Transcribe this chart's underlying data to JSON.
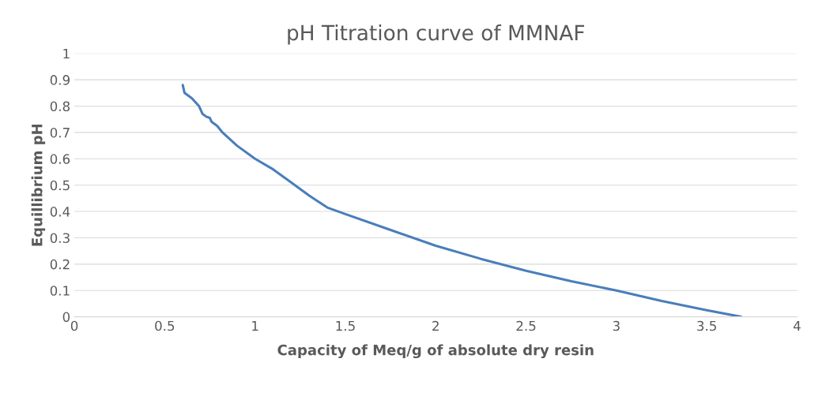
{
  "chart_data": {
    "type": "line",
    "title": "pH Titration curve of MMNAF",
    "xlabel": "Capacity of Meq/g of absolute dry resin",
    "ylabel": "Equillibrium pH",
    "x": [
      0.6,
      0.61,
      0.65,
      0.69,
      0.71,
      0.73,
      0.75,
      0.76,
      0.79,
      0.82,
      0.9,
      1.0,
      1.1,
      1.2,
      1.3,
      1.4,
      1.5,
      1.75,
      2.0,
      2.25,
      2.5,
      2.75,
      3.0,
      3.25,
      3.5,
      3.69
    ],
    "series": [
      {
        "color": "#4a7ebb",
        "values": [
          0.88,
          0.85,
          0.83,
          0.8,
          0.77,
          0.76,
          0.755,
          0.74,
          0.725,
          0.7,
          0.65,
          0.6,
          0.56,
          0.51,
          0.46,
          0.415,
          0.39,
          0.33,
          0.27,
          0.22,
          0.175,
          0.135,
          0.1,
          0.06,
          0.025,
          0.0
        ]
      }
    ],
    "xlim": [
      0,
      4
    ],
    "xticks": [
      0,
      0.5,
      1,
      1.5,
      2,
      2.5,
      3,
      3.5,
      4
    ],
    "ylim": [
      0,
      1
    ],
    "yticks": [
      0,
      0.1,
      0.2,
      0.3,
      0.4,
      0.5,
      0.6,
      0.7,
      0.8,
      0.9,
      1
    ],
    "grid": "y",
    "marker": "none",
    "line_style": "solid"
  }
}
